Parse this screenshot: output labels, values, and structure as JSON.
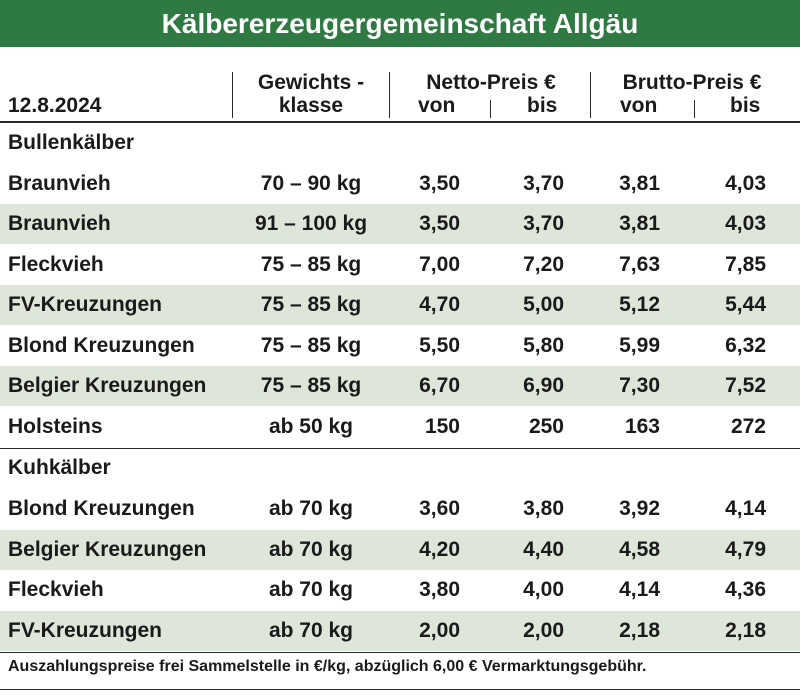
{
  "title": "Kälbererzeugergemeinschaft Allgäu",
  "header": {
    "date": "12.8.2024",
    "weight_class_line1": "Gewichts -",
    "weight_class_line2": "klasse",
    "netto_title": "Netto-Preis €",
    "brutto_title": "Brutto-Preis €",
    "von": "von",
    "bis": "bis"
  },
  "sections": [
    {
      "title": "Bullenkälber",
      "rows": [
        {
          "name": "Braunvieh",
          "weight": "70 – 90 kg",
          "netto_von": "3,50",
          "netto_bis": "3,70",
          "brutto_von": "3,81",
          "brutto_bis": "4,03"
        },
        {
          "name": "Braunvieh",
          "weight": "91 – 100 kg",
          "netto_von": "3,50",
          "netto_bis": "3,70",
          "brutto_von": "3,81",
          "brutto_bis": "4,03"
        },
        {
          "name": "Fleckvieh",
          "weight": "75 – 85 kg",
          "netto_von": "7,00",
          "netto_bis": "7,20",
          "brutto_von": "7,63",
          "brutto_bis": "7,85"
        },
        {
          "name": "FV-Kreuzungen",
          "weight": "75 – 85 kg",
          "netto_von": "4,70",
          "netto_bis": "5,00",
          "brutto_von": "5,12",
          "brutto_bis": "5,44"
        },
        {
          "name": "Blond Kreuzungen",
          "weight": "75 – 85 kg",
          "netto_von": "5,50",
          "netto_bis": "5,80",
          "brutto_von": "5,99",
          "brutto_bis": "6,32"
        },
        {
          "name": "Belgier Kreuzungen",
          "weight": "75 – 85 kg",
          "netto_von": "6,70",
          "netto_bis": "6,90",
          "brutto_von": "7,30",
          "brutto_bis": "7,52"
        },
        {
          "name": "Holsteins",
          "weight": "ab 50 kg",
          "netto_von": "150",
          "netto_bis": "250",
          "brutto_von": "163",
          "brutto_bis": "272"
        }
      ]
    },
    {
      "title": "Kuhkälber",
      "rows": [
        {
          "name": "Blond Kreuzungen",
          "weight": "ab 70 kg",
          "netto_von": "3,60",
          "netto_bis": "3,80",
          "brutto_von": "3,92",
          "brutto_bis": "4,14"
        },
        {
          "name": "Belgier Kreuzungen",
          "weight": "ab 70 kg",
          "netto_von": "4,20",
          "netto_bis": "4,40",
          "brutto_von": "4,58",
          "brutto_bis": "4,79"
        },
        {
          "name": "Fleckvieh",
          "weight": "ab 70 kg",
          "netto_von": "3,80",
          "netto_bis": "4,00",
          "brutto_von": "4,14",
          "brutto_bis": "4,36"
        },
        {
          "name": "FV-Kreuzungen",
          "weight": "ab 70 kg",
          "netto_von": "2,00",
          "netto_bis": "2,00",
          "brutto_von": "2,18",
          "brutto_bis": "2,18"
        }
      ]
    }
  ],
  "footnote": "Auszahlungspreise frei Sammelstelle in €/kg, abzüglich 6,00 € Vermarktungsgebühr.",
  "colors": {
    "title_bg": "#2f7a43",
    "stripe": "#dde6d9"
  }
}
